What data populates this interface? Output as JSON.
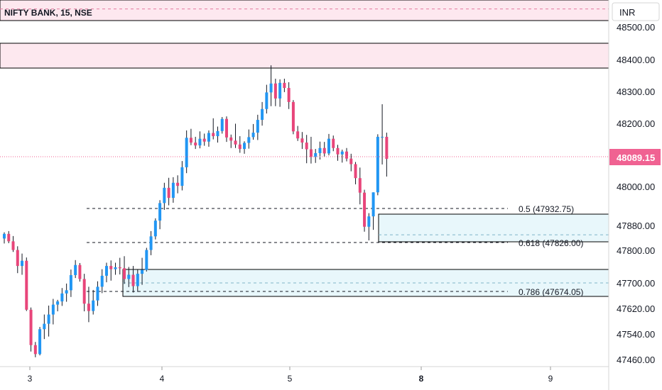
{
  "chart_data": {
    "type": "candlestick",
    "title": "NIFTY BANK, 15, NSE",
    "currency": "INR",
    "last_price": 48089.15,
    "last_price_label": "48089.15",
    "x_ticks": [
      "3",
      "4",
      "5",
      "8",
      "9"
    ],
    "y_ticks": [
      "48500.00",
      "48400.00",
      "48300.00",
      "48200.00",
      "48000.00",
      "47880.00",
      "47800.00",
      "47700.00",
      "47620.00",
      "47540.00",
      "47460.00"
    ],
    "ylim": [
      47440,
      48560
    ],
    "colors": {
      "up": "#2196f3",
      "down": "#e8457a",
      "last_price": "#f06292",
      "zone": "#e8f7fb",
      "supply_zone": "#fde8ef"
    },
    "fib_levels": [
      {
        "ratio": "0.5",
        "price": 47932.75,
        "label": "0.5 (47932.75)"
      },
      {
        "ratio": "0.618",
        "price": 47826.0,
        "label": "0.618 (47826.00)"
      },
      {
        "ratio": "0.786",
        "price": 47674.05,
        "label": "0.786 (47674.05)"
      }
    ],
    "demand_zones": [
      {
        "from_price": 47826,
        "to_price": 47870,
        "mid": 47850
      },
      {
        "from_price": 47655,
        "to_price": 47755,
        "mid": 47700
      }
    ],
    "supply_zones": [
      {
        "from_price": 48370,
        "to_price": 48450,
        "mid": 48410
      },
      {
        "from_price": 48510,
        "to_price": 48560,
        "mid": 48540
      }
    ],
    "candles": [
      [
        47838,
        47858,
        47822,
        47853
      ],
      [
        47853,
        47862,
        47823,
        47829
      ],
      [
        47829,
        47846,
        47795,
        47801
      ],
      [
        47801,
        47813,
        47730,
        47752
      ],
      [
        47752,
        47790,
        47725,
        47768
      ],
      [
        47768,
        47778,
        47612,
        47616
      ],
      [
        47616,
        47623,
        47485,
        47505
      ],
      [
        47505,
        47515,
        47467,
        47477
      ],
      [
        47477,
        47562,
        47473,
        47555
      ],
      [
        47555,
        47601,
        47524,
        47572
      ],
      [
        47572,
        47629,
        47532,
        47601
      ],
      [
        47601,
        47650,
        47570,
        47632
      ],
      [
        47632,
        47647,
        47611,
        47642
      ],
      [
        47642,
        47684,
        47628,
        47667
      ],
      [
        47667,
        47698,
        47641,
        47677
      ],
      [
        47677,
        47741,
        47656,
        47724
      ],
      [
        47724,
        47770,
        47715,
        47755
      ],
      [
        47755,
        47761,
        47704,
        47712
      ],
      [
        47712,
        47728,
        47611,
        47635
      ],
      [
        47635,
        47688,
        47577,
        47612
      ],
      [
        47612,
        47678,
        47601,
        47645
      ],
      [
        47645,
        47705,
        47628,
        47688
      ],
      [
        47688,
        47742,
        47668,
        47722
      ],
      [
        47722,
        47762,
        47702,
        47752
      ],
      [
        47752,
        47769,
        47707,
        47742
      ],
      [
        47742,
        47762,
        47725,
        47748
      ],
      [
        47748,
        47777,
        47726,
        47745
      ],
      [
        47745,
        47782,
        47697,
        47712
      ],
      [
        47712,
        47749,
        47687,
        47725
      ],
      [
        47725,
        47752,
        47670,
        47690
      ],
      [
        47690,
        47741,
        47672,
        47728
      ],
      [
        47728,
        47777,
        47694,
        47740
      ],
      [
        47740,
        47808,
        47735,
        47801
      ],
      [
        47801,
        47862,
        47785,
        47845
      ],
      [
        47845,
        47902,
        47835,
        47895
      ],
      [
        47895,
        47958,
        47868,
        47949
      ],
      [
        47949,
        48012,
        47928,
        47996
      ],
      [
        47996,
        48028,
        47942,
        47965
      ],
      [
        47965,
        48030,
        47950,
        48012
      ],
      [
        48012,
        48036,
        47979,
        48002
      ],
      [
        48002,
        48082,
        47988,
        48062
      ],
      [
        48062,
        48178,
        48043,
        48155
      ],
      [
        48155,
        48183,
        48132,
        48140
      ],
      [
        48140,
        48158,
        48120,
        48131
      ],
      [
        48131,
        48175,
        48122,
        48152
      ],
      [
        48152,
        48168,
        48130,
        48143
      ],
      [
        48143,
        48178,
        48127,
        48170
      ],
      [
        48170,
        48216,
        48150,
        48160
      ],
      [
        48160,
        48190,
        48140,
        48176
      ],
      [
        48176,
        48220,
        48168,
        48214
      ],
      [
        48214,
        48222,
        48142,
        48156
      ],
      [
        48156,
        48165,
        48123,
        48146
      ],
      [
        48146,
        48199,
        48123,
        48134
      ],
      [
        48134,
        48160,
        48108,
        48120
      ],
      [
        48120,
        48144,
        48105,
        48139
      ],
      [
        48139,
        48181,
        48121,
        48157
      ],
      [
        48157,
        48198,
        48149,
        48171
      ],
      [
        48171,
        48227,
        48148,
        48211
      ],
      [
        48211,
        48267,
        48193,
        48245
      ],
      [
        48245,
        48321,
        48231,
        48297
      ],
      [
        48297,
        48382,
        48254,
        48325
      ],
      [
        48325,
        48340,
        48254,
        48278
      ],
      [
        48278,
        48338,
        48252,
        48327
      ],
      [
        48327,
        48340,
        48298,
        48311
      ],
      [
        48311,
        48329,
        48245,
        48267
      ],
      [
        48267,
        48273,
        48166,
        48175
      ],
      [
        48175,
        48192,
        48145,
        48153
      ],
      [
        48153,
        48173,
        48120,
        48140
      ],
      [
        48140,
        48164,
        48075,
        48119
      ],
      [
        48119,
        48158,
        48074,
        48095
      ],
      [
        48095,
        48120,
        48076,
        48107
      ],
      [
        48107,
        48143,
        48087,
        48123
      ],
      [
        48123,
        48142,
        48096,
        48106
      ],
      [
        48106,
        48167,
        48100,
        48152
      ],
      [
        48152,
        48162,
        48113,
        48123
      ],
      [
        48123,
        48133,
        48083,
        48103
      ],
      [
        48103,
        48118,
        48077,
        48112
      ],
      [
        48112,
        48123,
        48081,
        48090
      ],
      [
        48090,
        48105,
        48049,
        48072
      ],
      [
        48072,
        48079,
        48007,
        48027
      ],
      [
        48027,
        48061,
        47945,
        47981
      ],
      [
        47981,
        47990,
        47860,
        47876
      ],
      [
        47876,
        47918,
        47832,
        47908
      ],
      [
        47908,
        47982,
        47866,
        47982
      ],
      [
        47982,
        48166,
        47973,
        48158
      ],
      [
        48158,
        48260,
        48071,
        48158
      ],
      [
        48158,
        48171,
        48032,
        48089
      ]
    ]
  }
}
